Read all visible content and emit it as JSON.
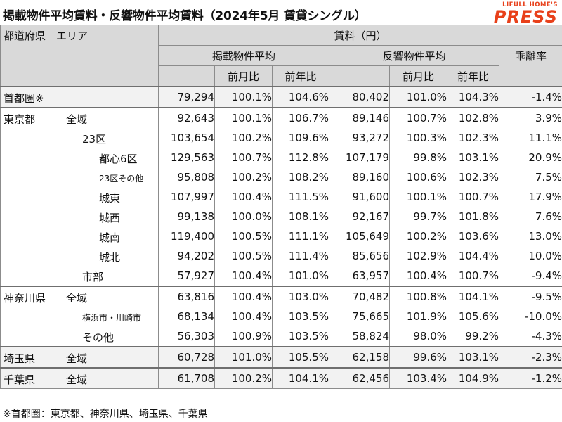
{
  "title": "掲載物件平均賃料・反響物件平均賃料（2024年5月 賃貸シングル）",
  "logo": {
    "top": "LIFULL HOME'S",
    "main": "PRESS"
  },
  "header": {
    "pref_area": "都道府県　エリア",
    "rent": "賃料（円）",
    "listed": "掲載物件平均",
    "response": "反響物件平均",
    "divergence": "乖離率",
    "mom": "前月比",
    "yoy": "前年比"
  },
  "rows": [
    {
      "pref": "首都圏※",
      "area": "",
      "l": "79,294",
      "lm": "100.1%",
      "ly": "104.6%",
      "r": "80,402",
      "rm": "101.0%",
      "ry": "104.3%",
      "d": "-1.4%"
    },
    {
      "pref": "東京都",
      "area": "全域",
      "l": "92,643",
      "lm": "100.1%",
      "ly": "106.7%",
      "r": "89,146",
      "rm": "100.7%",
      "ry": "102.8%",
      "d": "3.9%"
    },
    {
      "pref": "",
      "area": "23区",
      "l": "103,654",
      "lm": "100.2%",
      "ly": "109.6%",
      "r": "93,272",
      "rm": "100.3%",
      "ry": "102.3%",
      "d": "11.1%"
    },
    {
      "pref": "",
      "area": "都心6区",
      "l": "129,563",
      "lm": "100.7%",
      "ly": "112.8%",
      "r": "107,179",
      "rm": "99.8%",
      "ry": "103.1%",
      "d": "20.9%"
    },
    {
      "pref": "",
      "area": "23区その他",
      "l": "95,808",
      "lm": "100.2%",
      "ly": "108.2%",
      "r": "89,160",
      "rm": "100.6%",
      "ry": "102.3%",
      "d": "7.5%"
    },
    {
      "pref": "",
      "area": "城東",
      "l": "107,997",
      "lm": "100.4%",
      "ly": "111.5%",
      "r": "91,600",
      "rm": "100.1%",
      "ry": "100.7%",
      "d": "17.9%"
    },
    {
      "pref": "",
      "area": "城西",
      "l": "99,138",
      "lm": "100.0%",
      "ly": "108.1%",
      "r": "92,167",
      "rm": "99.7%",
      "ry": "101.8%",
      "d": "7.6%"
    },
    {
      "pref": "",
      "area": "城南",
      "l": "119,400",
      "lm": "100.5%",
      "ly": "111.1%",
      "r": "105,649",
      "rm": "100.2%",
      "ry": "103.6%",
      "d": "13.0%"
    },
    {
      "pref": "",
      "area": "城北",
      "l": "94,202",
      "lm": "100.5%",
      "ly": "111.4%",
      "r": "85,656",
      "rm": "102.9%",
      "ry": "104.4%",
      "d": "10.0%"
    },
    {
      "pref": "",
      "area": "市部",
      "l": "57,927",
      "lm": "100.4%",
      "ly": "101.0%",
      "r": "63,957",
      "rm": "100.4%",
      "ry": "100.7%",
      "d": "-9.4%"
    },
    {
      "pref": "神奈川県",
      "area": "全域",
      "l": "63,816",
      "lm": "100.4%",
      "ly": "103.0%",
      "r": "70,482",
      "rm": "100.8%",
      "ry": "104.1%",
      "d": "-9.5%"
    },
    {
      "pref": "",
      "area": "横浜市・川崎市",
      "l": "68,134",
      "lm": "100.4%",
      "ly": "103.5%",
      "r": "75,665",
      "rm": "101.9%",
      "ry": "105.6%",
      "d": "-10.0%"
    },
    {
      "pref": "",
      "area": "その他",
      "l": "56,303",
      "lm": "100.9%",
      "ly": "103.5%",
      "r": "58,824",
      "rm": "98.0%",
      "ry": "99.2%",
      "d": "-4.3%"
    },
    {
      "pref": "埼玉県",
      "area": "全域",
      "l": "60,728",
      "lm": "101.0%",
      "ly": "105.5%",
      "r": "62,158",
      "rm": "99.6%",
      "ry": "103.1%",
      "d": "-2.3%"
    },
    {
      "pref": "千葉県",
      "area": "全域",
      "l": "61,708",
      "lm": "100.2%",
      "ly": "104.1%",
      "r": "62,456",
      "rm": "103.4%",
      "ry": "104.9%",
      "d": "-1.2%"
    }
  ],
  "footnote": "※首都圏：東京都、神奈川県、埼玉県、千葉県"
}
